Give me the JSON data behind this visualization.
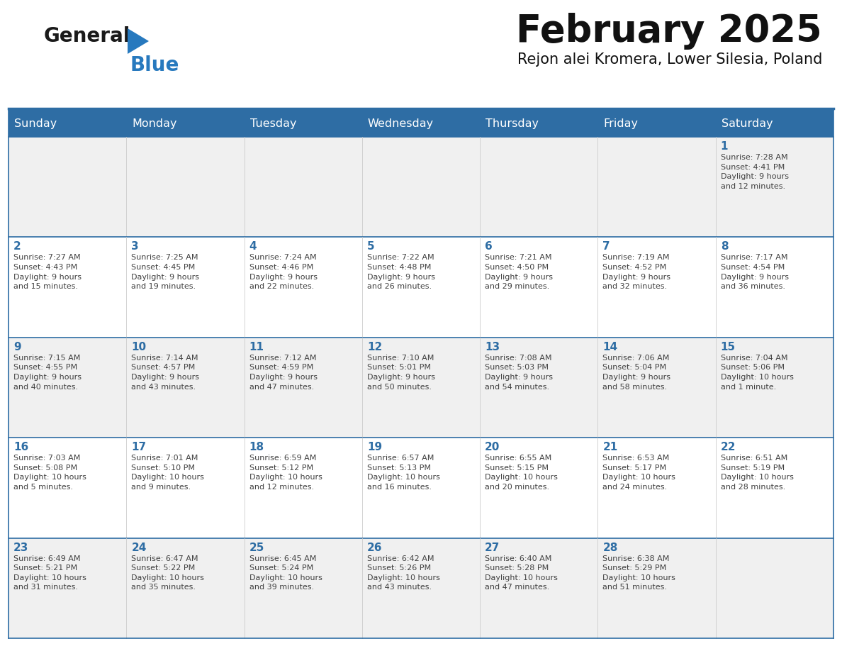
{
  "title": "February 2025",
  "subtitle": "Rejon alei Kromera, Lower Silesia, Poland",
  "header_bg": "#2E6DA4",
  "header_text_color": "#FFFFFF",
  "cell_bg_light": "#F0F0F0",
  "cell_bg_white": "#FFFFFF",
  "day_number_color": "#2E6DA4",
  "info_text_color": "#404040",
  "border_color": "#2E6DA4",
  "light_border_color": "#AAAAAA",
  "days_of_week": [
    "Sunday",
    "Monday",
    "Tuesday",
    "Wednesday",
    "Thursday",
    "Friday",
    "Saturday"
  ],
  "weeks": [
    [
      {
        "day": "",
        "info": ""
      },
      {
        "day": "",
        "info": ""
      },
      {
        "day": "",
        "info": ""
      },
      {
        "day": "",
        "info": ""
      },
      {
        "day": "",
        "info": ""
      },
      {
        "day": "",
        "info": ""
      },
      {
        "day": "1",
        "info": "Sunrise: 7:28 AM\nSunset: 4:41 PM\nDaylight: 9 hours\nand 12 minutes."
      }
    ],
    [
      {
        "day": "2",
        "info": "Sunrise: 7:27 AM\nSunset: 4:43 PM\nDaylight: 9 hours\nand 15 minutes."
      },
      {
        "day": "3",
        "info": "Sunrise: 7:25 AM\nSunset: 4:45 PM\nDaylight: 9 hours\nand 19 minutes."
      },
      {
        "day": "4",
        "info": "Sunrise: 7:24 AM\nSunset: 4:46 PM\nDaylight: 9 hours\nand 22 minutes."
      },
      {
        "day": "5",
        "info": "Sunrise: 7:22 AM\nSunset: 4:48 PM\nDaylight: 9 hours\nand 26 minutes."
      },
      {
        "day": "6",
        "info": "Sunrise: 7:21 AM\nSunset: 4:50 PM\nDaylight: 9 hours\nand 29 minutes."
      },
      {
        "day": "7",
        "info": "Sunrise: 7:19 AM\nSunset: 4:52 PM\nDaylight: 9 hours\nand 32 minutes."
      },
      {
        "day": "8",
        "info": "Sunrise: 7:17 AM\nSunset: 4:54 PM\nDaylight: 9 hours\nand 36 minutes."
      }
    ],
    [
      {
        "day": "9",
        "info": "Sunrise: 7:15 AM\nSunset: 4:55 PM\nDaylight: 9 hours\nand 40 minutes."
      },
      {
        "day": "10",
        "info": "Sunrise: 7:14 AM\nSunset: 4:57 PM\nDaylight: 9 hours\nand 43 minutes."
      },
      {
        "day": "11",
        "info": "Sunrise: 7:12 AM\nSunset: 4:59 PM\nDaylight: 9 hours\nand 47 minutes."
      },
      {
        "day": "12",
        "info": "Sunrise: 7:10 AM\nSunset: 5:01 PM\nDaylight: 9 hours\nand 50 minutes."
      },
      {
        "day": "13",
        "info": "Sunrise: 7:08 AM\nSunset: 5:03 PM\nDaylight: 9 hours\nand 54 minutes."
      },
      {
        "day": "14",
        "info": "Sunrise: 7:06 AM\nSunset: 5:04 PM\nDaylight: 9 hours\nand 58 minutes."
      },
      {
        "day": "15",
        "info": "Sunrise: 7:04 AM\nSunset: 5:06 PM\nDaylight: 10 hours\nand 1 minute."
      }
    ],
    [
      {
        "day": "16",
        "info": "Sunrise: 7:03 AM\nSunset: 5:08 PM\nDaylight: 10 hours\nand 5 minutes."
      },
      {
        "day": "17",
        "info": "Sunrise: 7:01 AM\nSunset: 5:10 PM\nDaylight: 10 hours\nand 9 minutes."
      },
      {
        "day": "18",
        "info": "Sunrise: 6:59 AM\nSunset: 5:12 PM\nDaylight: 10 hours\nand 12 minutes."
      },
      {
        "day": "19",
        "info": "Sunrise: 6:57 AM\nSunset: 5:13 PM\nDaylight: 10 hours\nand 16 minutes."
      },
      {
        "day": "20",
        "info": "Sunrise: 6:55 AM\nSunset: 5:15 PM\nDaylight: 10 hours\nand 20 minutes."
      },
      {
        "day": "21",
        "info": "Sunrise: 6:53 AM\nSunset: 5:17 PM\nDaylight: 10 hours\nand 24 minutes."
      },
      {
        "day": "22",
        "info": "Sunrise: 6:51 AM\nSunset: 5:19 PM\nDaylight: 10 hours\nand 28 minutes."
      }
    ],
    [
      {
        "day": "23",
        "info": "Sunrise: 6:49 AM\nSunset: 5:21 PM\nDaylight: 10 hours\nand 31 minutes."
      },
      {
        "day": "24",
        "info": "Sunrise: 6:47 AM\nSunset: 5:22 PM\nDaylight: 10 hours\nand 35 minutes."
      },
      {
        "day": "25",
        "info": "Sunrise: 6:45 AM\nSunset: 5:24 PM\nDaylight: 10 hours\nand 39 minutes."
      },
      {
        "day": "26",
        "info": "Sunrise: 6:42 AM\nSunset: 5:26 PM\nDaylight: 10 hours\nand 43 minutes."
      },
      {
        "day": "27",
        "info": "Sunrise: 6:40 AM\nSunset: 5:28 PM\nDaylight: 10 hours\nand 47 minutes."
      },
      {
        "day": "28",
        "info": "Sunrise: 6:38 AM\nSunset: 5:29 PM\nDaylight: 10 hours\nand 51 minutes."
      },
      {
        "day": "",
        "info": ""
      }
    ]
  ],
  "logo_general_color": "#1a1a1a",
  "logo_blue_color": "#2779BE",
  "logo_triangle_color": "#2779BE",
  "title_fontsize": 38,
  "subtitle_fontsize": 15,
  "day_header_fontsize": 11.5,
  "day_number_fontsize": 11,
  "info_fontsize": 8.0
}
